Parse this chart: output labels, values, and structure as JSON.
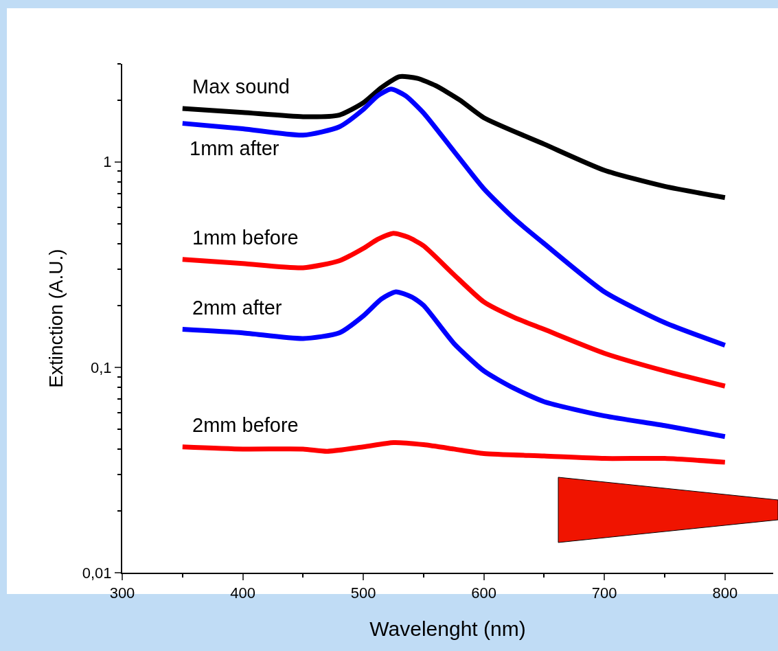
{
  "chart_data": {
    "type": "line",
    "xlabel": "Wavelenght (nm)",
    "ylabel": "Extinction (A.U.)",
    "log": "y",
    "grid": false,
    "marker": "none",
    "line_style": "solid",
    "legend": false,
    "xlim": [
      300,
      840
    ],
    "xticks": [
      300,
      400,
      500,
      600,
      700,
      800
    ],
    "ylim": [
      0.01,
      3
    ],
    "yticks": [
      {
        "value": 0.01,
        "label": "0,01"
      },
      {
        "value": 0.1,
        "label": "0,1"
      },
      {
        "value": 1,
        "label": "1"
      }
    ],
    "series": [
      {
        "name": "Max sound",
        "color": "#000000",
        "x": [
          350,
          400,
          450,
          480,
          500,
          515,
          530,
          545,
          560,
          580,
          600,
          650,
          700,
          750,
          800
        ],
        "values": [
          1.82,
          1.74,
          1.66,
          1.69,
          1.94,
          2.3,
          2.6,
          2.55,
          2.35,
          2.0,
          1.64,
          1.22,
          0.91,
          0.76,
          0.67
        ]
      },
      {
        "name": "1mm after",
        "color": "#0000ff",
        "x": [
          350,
          400,
          450,
          480,
          500,
          512,
          523,
          535,
          550,
          575,
          600,
          625,
          650,
          700,
          750,
          800
        ],
        "values": [
          1.54,
          1.45,
          1.35,
          1.48,
          1.8,
          2.1,
          2.26,
          2.1,
          1.73,
          1.13,
          0.74,
          0.53,
          0.4,
          0.233,
          0.165,
          0.128
        ]
      },
      {
        "name": "1mm before",
        "color": "#ff0000",
        "x": [
          350,
          400,
          450,
          480,
          500,
          512,
          525,
          537,
          550,
          575,
          600,
          625,
          650,
          700,
          750,
          800
        ],
        "values": [
          0.335,
          0.32,
          0.305,
          0.33,
          0.379,
          0.42,
          0.449,
          0.43,
          0.39,
          0.283,
          0.208,
          0.175,
          0.153,
          0.117,
          0.096,
          0.081
        ]
      },
      {
        "name": "2mm after",
        "color": "#0000ff",
        "x": [
          350,
          400,
          450,
          480,
          500,
          515,
          527,
          540,
          550,
          575,
          600,
          625,
          650,
          700,
          750,
          800
        ],
        "values": [
          0.153,
          0.147,
          0.138,
          0.147,
          0.178,
          0.215,
          0.233,
          0.22,
          0.2,
          0.131,
          0.096,
          0.079,
          0.068,
          0.058,
          0.052,
          0.046
        ]
      },
      {
        "name": "2mm before",
        "color": "#ff0000",
        "x": [
          350,
          400,
          450,
          470,
          500,
          525,
          550,
          575,
          600,
          650,
          700,
          750,
          800
        ],
        "values": [
          0.041,
          0.04,
          0.04,
          0.039,
          0.041,
          0.043,
          0.042,
          0.04,
          0.038,
          0.037,
          0.036,
          0.036,
          0.0345
        ]
      }
    ]
  }
}
